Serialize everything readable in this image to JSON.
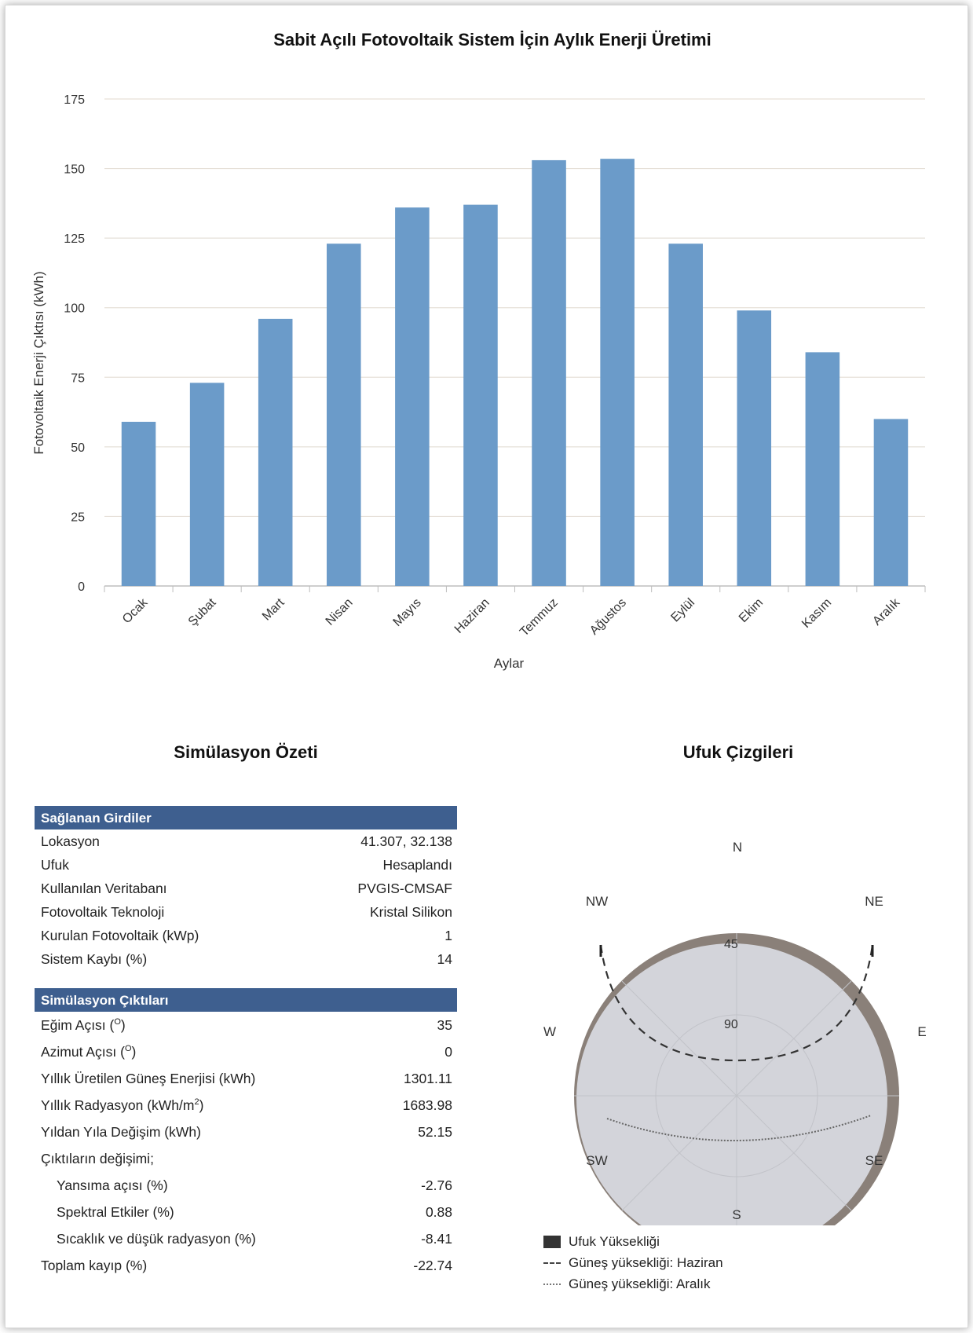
{
  "chart_data": {
    "type": "bar",
    "title": "Sabit Açılı Fotovoltaik Sistem İçin Aylık Enerji Üretimi",
    "xlabel": "Aylar",
    "ylabel": "Fotovoltaik Enerji Çıktısı (kWh)",
    "categories": [
      "Ocak",
      "Şubat",
      "Mart",
      "Nisan",
      "Mayıs",
      "Haziran",
      "Temmuz",
      "Ağustos",
      "Eylül",
      "Ekim",
      "Kasım",
      "Aralık"
    ],
    "values": [
      59,
      73,
      96,
      123,
      136,
      137,
      153,
      153.5,
      123,
      99,
      84,
      60
    ],
    "ylim": [
      0,
      175
    ],
    "yticks": [
      0,
      25,
      50,
      75,
      100,
      125,
      150,
      175
    ],
    "grid": true,
    "bar_color": "#6b9bc9"
  },
  "summary": {
    "title": "Simülasyon Özeti",
    "inputs_header": "Sağlanan Girdiler",
    "inputs": [
      {
        "label": "Lokasyon",
        "value": "41.307, 32.138"
      },
      {
        "label": "Ufuk",
        "value": "Hesaplandı"
      },
      {
        "label": "Kullanılan Veritabanı",
        "value": "PVGIS-CMSAF"
      },
      {
        "label": "Fotovoltaik Teknoloji",
        "value": "Kristal Silikon"
      },
      {
        "label": "Kurulan Fotovoltaik (kWp)",
        "value": "1"
      },
      {
        "label": "Sistem Kaybı (%)",
        "value": "14"
      }
    ],
    "outputs_header": "Simülasyon Çıktıları",
    "outputs": [
      {
        "label": "Eğim Açısı (",
        "sup": "O",
        "suffix": ")",
        "value": "35"
      },
      {
        "label": "Azimut Açısı (",
        "sup": "O",
        "suffix": ")",
        "value": "0"
      },
      {
        "label": "Yıllık Üretilen Güneş Enerjisi (kWh)",
        "sup": "",
        "suffix": "",
        "value": "1301.11"
      },
      {
        "label": "Yıllık Radyasyon (kWh/m",
        "sup": "2",
        "suffix": ")",
        "value": "1683.98"
      },
      {
        "label": "Yıldan Yıla Değişim (kWh)",
        "sup": "",
        "suffix": "",
        "value": "52.15"
      }
    ],
    "changes_label": "Çıktıların değişimi;",
    "changes": [
      {
        "label": "Yansıma açısı (%)",
        "value": "-2.76"
      },
      {
        "label": "Spektral Etkiler (%)",
        "value": "0.88"
      },
      {
        "label": "Sıcaklık ve düşük radyasyon (%)",
        "value": "-8.41"
      }
    ],
    "total": {
      "label": "Toplam kayıp (%)",
      "value": "-22.74"
    }
  },
  "horizon": {
    "title": "Ufuk Çizgileri",
    "directions": {
      "N": "N",
      "NE": "NE",
      "E": "E",
      "SE": "SE",
      "S": "S",
      "SW": "SW",
      "W": "W",
      "NW": "NW"
    },
    "rings": [
      "45",
      "90"
    ],
    "colors": {
      "horizon": "#8a8079",
      "sky": "#d3d4da",
      "june": "#333333",
      "december": "#666666"
    },
    "legend": {
      "horizon": "Ufuk Yüksekliği",
      "june": "Güneş yüksekliği: Haziran",
      "december": "Güneş yüksekliği: Aralık"
    }
  }
}
